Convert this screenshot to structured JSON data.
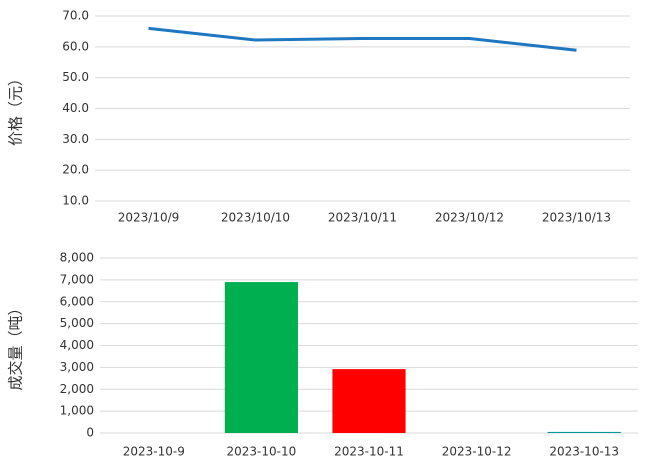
{
  "chart_data": [
    {
      "type": "line",
      "y_label": "价格（元）",
      "categories": [
        "2023/10/9",
        "2023/10/10",
        "2023/10/11",
        "2023/10/12",
        "2023/10/13"
      ],
      "series": [
        {
          "color": "#1f77c0",
          "values": [
            66.0,
            62.2,
            62.7,
            62.7,
            58.9
          ]
        }
      ],
      "ylim": [
        10,
        70
      ],
      "yticks": [
        {
          "value": 10,
          "label": "10.0"
        },
        {
          "value": 20,
          "label": "20.0"
        },
        {
          "value": 30,
          "label": "30.0"
        },
        {
          "value": 40,
          "label": "40.0"
        },
        {
          "value": 50,
          "label": "50.0"
        },
        {
          "value": 60,
          "label": "60.0"
        },
        {
          "value": 70,
          "label": "70.0"
        }
      ],
      "grid": true
    },
    {
      "type": "bar",
      "y_label": "成交量（吨）",
      "categories": [
        "2023-10-9",
        "2023-10-10",
        "2023-10-11",
        "2023-10-12",
        "2023-10-13"
      ],
      "values": [
        0,
        6900,
        2920,
        0,
        50
      ],
      "colors": [
        "#00b050",
        "#00b050",
        "#ff0000",
        "#00b050",
        "#009999"
      ],
      "ylim": [
        0,
        8000
      ],
      "yticks": [
        0,
        {
          "value": 1000,
          "label": "1,000"
        },
        {
          "value": 2000,
          "label": "2,000"
        },
        {
          "value": 3000,
          "label": "3,000"
        },
        {
          "value": 4000,
          "label": "4,000"
        },
        {
          "value": 5000,
          "label": "5,000"
        },
        {
          "value": 6000,
          "label": "6,000"
        },
        {
          "value": 7000,
          "label": "7,000"
        },
        {
          "value": 8000,
          "label": "8,000"
        }
      ],
      "grid": true
    }
  ]
}
